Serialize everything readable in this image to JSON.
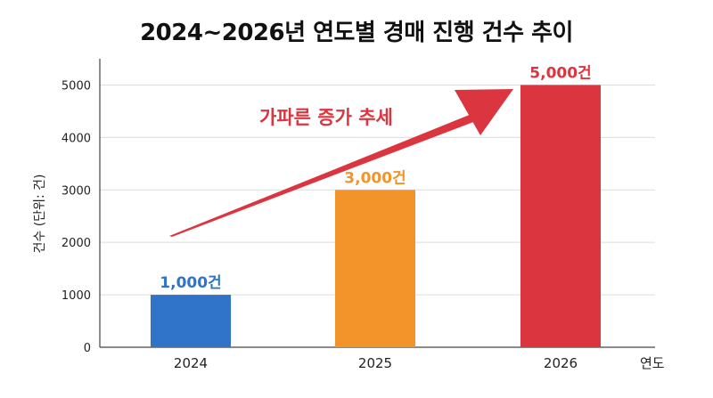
{
  "chart_data": {
    "type": "bar",
    "title": "2024~2026년 연도별 경매 진행 건수 추이",
    "xlabel": "연도",
    "ylabel": "건수 (단위: 건)",
    "categories": [
      "2024",
      "2025",
      "2026"
    ],
    "values": [
      1000,
      3000,
      5000
    ],
    "data_labels": [
      "1,000건",
      "3,000건",
      "5,000건"
    ],
    "bar_colors": [
      "#2f74c9",
      "#f2942a",
      "#db3540"
    ],
    "label_colors": [
      "#2f74c9",
      "#f2942a",
      "#db3540"
    ],
    "ylim": [
      0,
      5500
    ],
    "yticks": [
      0,
      1000,
      2000,
      3000,
      4000,
      5000
    ],
    "grid": true,
    "annotation": {
      "text": "가파른 증가 추세",
      "color": "#db3540"
    }
  }
}
